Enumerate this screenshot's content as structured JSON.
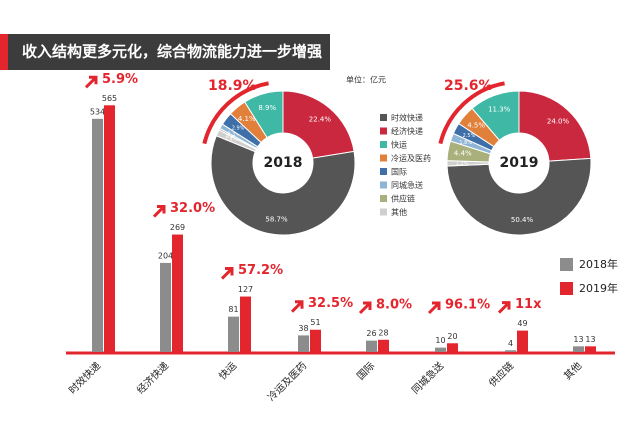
{
  "title": "收入结构更多元化，综合物流能力进一步增强",
  "chart_data": [
    {
      "type": "bar",
      "categories": [
        "时效快递",
        "经济快递",
        "快运",
        "冷运及医药",
        "国际",
        "同城急送",
        "供应链",
        "其他"
      ],
      "series": [
        {
          "name": "2018年",
          "color": "#8c8c8c",
          "values": [
            534,
            204,
            81,
            38,
            26,
            10,
            4,
            13
          ]
        },
        {
          "name": "2019年",
          "color": "#e3262e",
          "values": [
            565,
            269,
            127,
            51,
            28,
            20,
            49,
            13
          ]
        }
      ],
      "annotations": [
        "5.9%",
        "32.0%",
        "57.2%",
        "32.5%",
        "8.0%",
        "96.1%",
        "11x",
        null
      ],
      "ylim": [
        0,
        600
      ]
    },
    {
      "type": "pie",
      "subtitle": "单位：亿元",
      "center_label": "2018",
      "headline": "18.9%",
      "categories": [
        "时效快递",
        "经济快递",
        "快运",
        "冷运及医药",
        "国际",
        "同城急送",
        "供应链",
        "其他"
      ],
      "colors": [
        "#555555",
        "#c9283e",
        "#3fb8a6",
        "#e0803a",
        "#3e6fa8",
        "#8fb5d6",
        "#a9b07c",
        "#cfcfcf"
      ],
      "values": [
        58.7,
        22.4,
        8.9,
        4.1,
        2.9,
        1.1,
        0.4,
        1.4
      ],
      "value_labels": [
        "58.7%",
        "22.4%",
        "8.9%",
        "4.1%",
        "2.9%",
        "1.1%",
        "0.4%",
        "1.4%"
      ]
    },
    {
      "type": "pie",
      "center_label": "2019",
      "headline": "25.6%",
      "categories": [
        "时效快递",
        "经济快递",
        "快运",
        "冷运及医药",
        "国际",
        "同城急送",
        "供应链",
        "其他"
      ],
      "colors": [
        "#555555",
        "#c9283e",
        "#3fb8a6",
        "#e0803a",
        "#3e6fa8",
        "#8fb5d6",
        "#a9b07c",
        "#cfcfcf"
      ],
      "values": [
        50.4,
        24.0,
        11.3,
        4.5,
        2.5,
        1.8,
        4.4,
        1.2
      ],
      "value_labels": [
        "50.4%",
        "24.0%",
        "11.3%",
        "4.5%",
        "2.5%",
        "1.8%",
        "4.4%",
        "1.2%"
      ]
    }
  ]
}
